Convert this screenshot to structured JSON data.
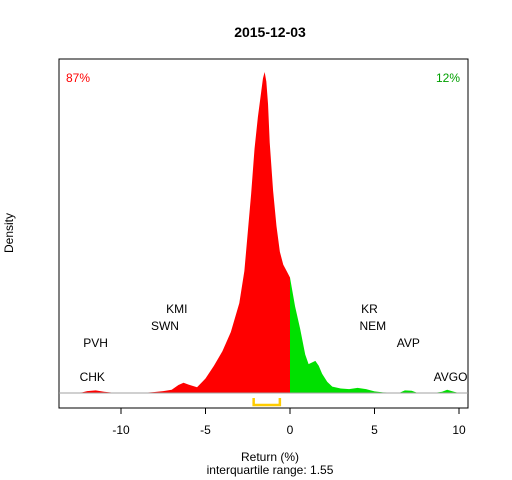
{
  "chart_data": {
    "type": "area",
    "title": "2015-12-03",
    "xlabel": "Return (%)",
    "subtitle": "interquartile range: 1.55",
    "ylabel": "Density",
    "xlim": [
      -13.5,
      10.5
    ],
    "xticks": [
      -10,
      -5,
      0,
      5,
      10
    ],
    "pct_negative": "87%",
    "pct_positive": "12%",
    "colors": {
      "negative": "#ff0000",
      "positive": "#00e000",
      "iqr": "#ffcc00",
      "axis": "#808080"
    },
    "iqr": {
      "q1": -2.15,
      "q3": -0.6
    },
    "density": {
      "x": [
        -13,
        -12.3,
        -12,
        -11.5,
        -11,
        -10.5,
        -10,
        -9.5,
        -9,
        -8.5,
        -8,
        -7.5,
        -7,
        -6.6,
        -6.3,
        -6,
        -5.5,
        -5,
        -4.5,
        -4,
        -3.5,
        -3,
        -2.7,
        -2.5,
        -2.3,
        -2.1,
        -1.9,
        -1.7,
        -1.6,
        -1.5,
        -1.4,
        -1.3,
        -1.2,
        -1.0,
        -0.8,
        -0.6,
        -0.4,
        -0.2,
        0,
        0.3,
        0.6,
        0.9,
        1.1,
        1.3,
        1.5,
        1.7,
        1.9,
        2.2,
        2.5,
        3,
        3.5,
        4,
        4.5,
        5,
        5.5,
        6,
        6.5,
        6.8,
        7.2,
        7.5,
        8,
        8.5,
        9,
        9.3,
        9.7,
        10
      ],
      "y": [
        0,
        0.002,
        0.006,
        0.008,
        0.004,
        0.001,
        0,
        0,
        0,
        0.001,
        0.003,
        0.006,
        0.01,
        0.025,
        0.032,
        0.026,
        0.018,
        0.045,
        0.085,
        0.13,
        0.19,
        0.28,
        0.38,
        0.5,
        0.62,
        0.76,
        0.86,
        0.94,
        0.98,
        1.0,
        0.97,
        0.9,
        0.78,
        0.63,
        0.52,
        0.44,
        0.4,
        0.38,
        0.36,
        0.27,
        0.2,
        0.12,
        0.09,
        0.095,
        0.1,
        0.085,
        0.06,
        0.035,
        0.02,
        0.014,
        0.012,
        0.016,
        0.012,
        0.005,
        0.002,
        0.001,
        0.001,
        0.008,
        0.007,
        0.001,
        0,
        0,
        0.004,
        0.01,
        0.004,
        0
      ]
    },
    "labels": [
      {
        "text": "PVH",
        "x": -11.5,
        "level": 3
      },
      {
        "text": "CHK",
        "x": -11.7,
        "level": 1
      },
      {
        "text": "KMI",
        "x": -6.7,
        "level": 5
      },
      {
        "text": "SWN",
        "x": -7.4,
        "level": 4
      },
      {
        "text": "KR",
        "x": 4.7,
        "level": 5
      },
      {
        "text": "NEM",
        "x": 4.9,
        "level": 4
      },
      {
        "text": "AVP",
        "x": 7.0,
        "level": 3
      },
      {
        "text": "AVGO",
        "x": 9.5,
        "level": 1
      }
    ]
  }
}
